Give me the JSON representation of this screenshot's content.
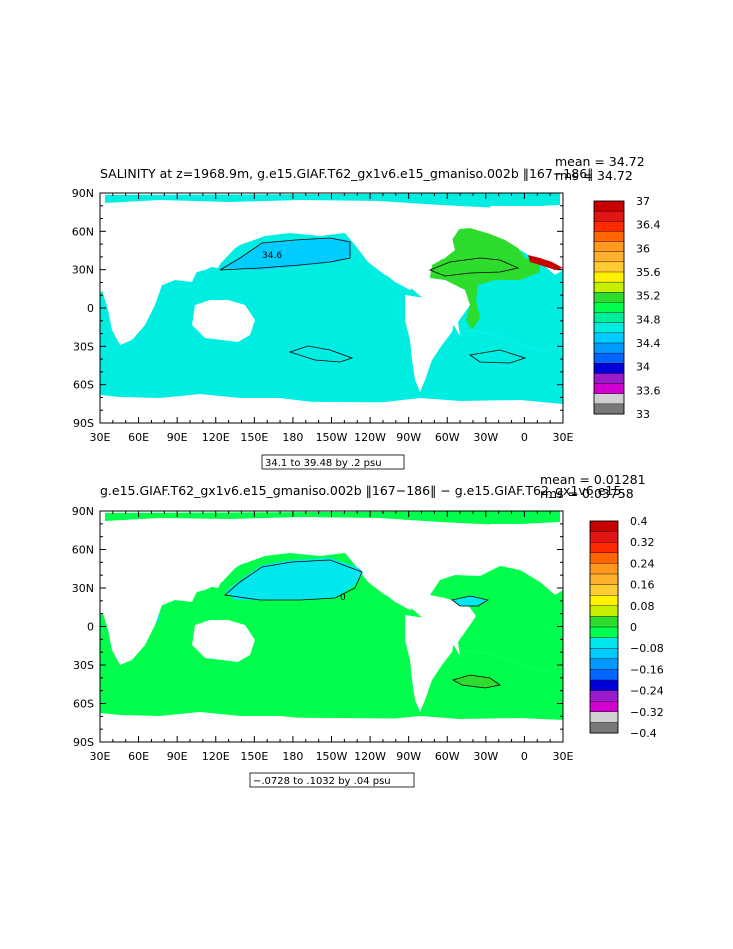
{
  "colors": {
    "land": "#ffffff",
    "ocean_top": "#00eee2",
    "ocean_bottom": "#00ff4c",
    "ocean_bottom_neg": "#00e8ee"
  },
  "chart_data": [
    {
      "type": "heatmap",
      "title": "SALINITY at z=1968.9m, g.e15.GIAF.T62_gx1v6.e15_gmaniso.002b ‖167−186‖",
      "stats": [
        "mean = 34.72",
        "rms = 34.72"
      ],
      "xticks": [
        "30E",
        "60E",
        "90E",
        "120E",
        "150E",
        "180",
        "150W",
        "120W",
        "90W",
        "60W",
        "30W",
        "0",
        "30E"
      ],
      "yticks": [
        "90N",
        "60N",
        "30N",
        "0",
        "30S",
        "60S",
        "90S"
      ],
      "xlim": [
        30,
        390
      ],
      "ylim": [
        -90,
        90
      ],
      "contour_label": "34.6",
      "contour_info": "34.1 to 39.48 by .2 psu",
      "colorbar": {
        "labels": [
          "37",
          "36.4",
          "36",
          "35.6",
          "35.2",
          "34.8",
          "34.4",
          "34",
          "33.6",
          "33"
        ],
        "colors": [
          "#c70000",
          "#e21515",
          "#ff2a00",
          "#ff6500",
          "#ff9a1e",
          "#ffb02e",
          "#ffcc33",
          "#fff100",
          "#c8ef00",
          "#2ddc2d",
          "#00ff4c",
          "#00ee9c",
          "#00eee2",
          "#00ccff",
          "#0099ff",
          "#0066ff",
          "#0000d8",
          "#9a1acc",
          "#d000d0",
          "#d0d0d0",
          "#787878"
        ]
      }
    },
    {
      "type": "heatmap",
      "title": "g.e15.GIAF.T62_gx1v6.e15_gmaniso.002b ‖167−186‖ − g.e15.GIAF.T62_gx1v6.e15.",
      "stats": [
        "mean = 0.01281",
        "rms = 0.03758"
      ],
      "xticks": [
        "30E",
        "60E",
        "90E",
        "120E",
        "150E",
        "180",
        "150W",
        "120W",
        "90W",
        "60W",
        "30W",
        "0",
        "30E"
      ],
      "yticks": [
        "90N",
        "60N",
        "30N",
        "0",
        "30S",
        "60S",
        "90S"
      ],
      "xlim": [
        30,
        390
      ],
      "ylim": [
        -90,
        90
      ],
      "contour_label": "0",
      "contour_info": "−.0728 to .1032 by .04 psu",
      "colorbar": {
        "labels": [
          "0.4",
          "0.32",
          "0.24",
          "0.16",
          "0.08",
          "0",
          "−0.08",
          "−0.16",
          "−0.24",
          "−0.32",
          "−0.4"
        ],
        "colors": [
          "#c70000",
          "#e21515",
          "#ff2a00",
          "#ff6500",
          "#ff9a1e",
          "#ffb02e",
          "#ffcc33",
          "#fff100",
          "#c8ef00",
          "#2ddc2d",
          "#00ff4c",
          "#00e8ee",
          "#00ccff",
          "#0099ff",
          "#0066ff",
          "#0000d8",
          "#9a1acc",
          "#d000d0",
          "#d0d0d0",
          "#787878"
        ]
      }
    }
  ]
}
